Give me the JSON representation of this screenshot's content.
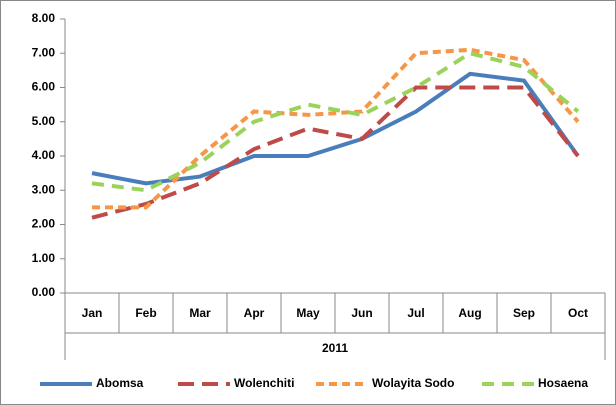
{
  "chart_data": {
    "type": "line",
    "categories": [
      "Jan",
      "Feb",
      "Mar",
      "Apr",
      "May",
      "Jun",
      "Jul",
      "Aug",
      "Sep",
      "Oct"
    ],
    "x_group_label": "2011",
    "series": [
      {
        "name": "Abomsa",
        "color": "#4a7ebb",
        "dash": "solid",
        "values": [
          3.5,
          3.2,
          3.4,
          4.0,
          4.0,
          4.5,
          5.3,
          6.4,
          6.2,
          4.0
        ]
      },
      {
        "name": "Wolenchiti",
        "color": "#be4b48",
        "dash": "long-dash",
        "values": [
          2.2,
          2.6,
          3.2,
          4.2,
          4.8,
          4.5,
          6.0,
          6.0,
          6.0,
          4.0
        ]
      },
      {
        "name": "Wolayita Sodo",
        "color": "#f79646",
        "dash": "short-dash",
        "values": [
          2.5,
          2.5,
          4.0,
          5.3,
          5.2,
          5.3,
          7.0,
          7.1,
          6.8,
          5.0
        ]
      },
      {
        "name": "Hosaena",
        "color": "#9bd35a",
        "dash": "dash",
        "values": [
          3.2,
          3.0,
          3.8,
          5.0,
          5.5,
          5.2,
          6.0,
          7.0,
          6.6,
          5.3
        ]
      }
    ],
    "ylim": [
      0,
      8
    ],
    "yticks": [
      {
        "value": 0,
        "label": "0.00"
      },
      {
        "value": 1,
        "label": "1.00"
      },
      {
        "value": 2,
        "label": "2.00"
      },
      {
        "value": 3,
        "label": "3.00"
      },
      {
        "value": 4,
        "label": "4.00"
      },
      {
        "value": 5,
        "label": "5.00"
      },
      {
        "value": 6,
        "label": "6.00"
      },
      {
        "value": 7,
        "label": "7.00"
      },
      {
        "value": 8,
        "label": "8.00"
      }
    ],
    "grid": false,
    "legend": "bottom"
  }
}
